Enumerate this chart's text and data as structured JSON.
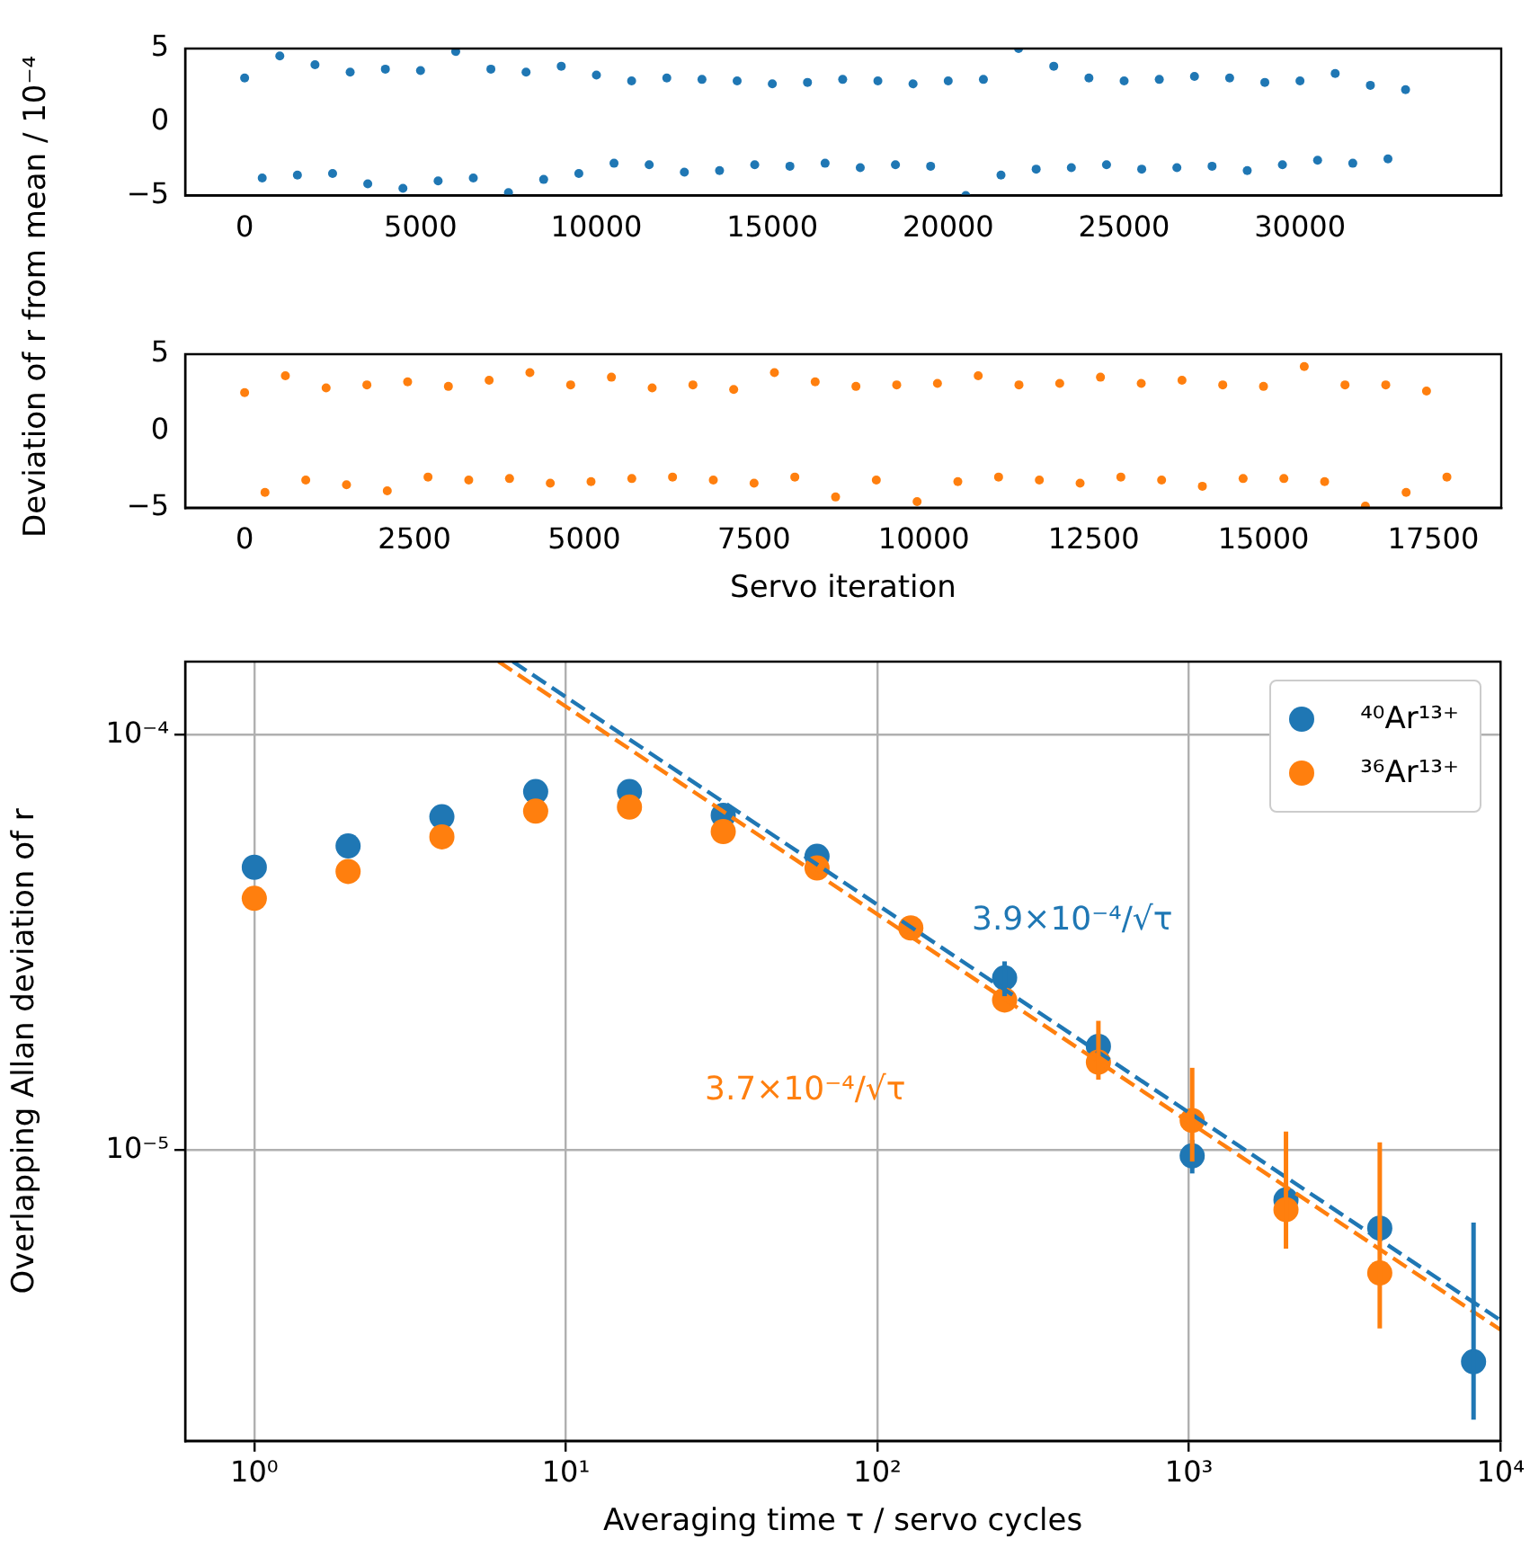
{
  "chart_data": [
    {
      "type": "scatter",
      "ylabel": "Deviation of r from mean / 10⁻⁴",
      "color": "#1f77b4",
      "marker": "circle",
      "grid": false,
      "x": [
        0,
        500,
        1000,
        1500,
        2000,
        2500,
        3000,
        3500,
        4000,
        4500,
        5000,
        5500,
        6000,
        6500,
        7000,
        7500,
        8000,
        8500,
        9000,
        9500,
        10000,
        10500,
        11000,
        11500,
        12000,
        12500,
        13000,
        13500,
        14000,
        14500,
        15000,
        15500,
        16000,
        16500,
        17000,
        17500,
        18000,
        18500,
        19000,
        19500,
        20000,
        20500,
        21000,
        21500,
        22000,
        22500,
        23000,
        23500,
        24000,
        24500,
        25000,
        25500,
        26000,
        26500,
        27000,
        27500,
        28000,
        28500,
        29000,
        29500,
        30000,
        30500,
        31000,
        31500,
        32000,
        32500,
        33000
      ],
      "values": [
        3.0,
        -3.8,
        4.5,
        -3.6,
        3.9,
        -3.5,
        3.4,
        -4.2,
        3.6,
        -4.5,
        3.5,
        -4.0,
        4.8,
        -3.8,
        3.6,
        -4.8,
        3.4,
        -3.9,
        3.8,
        -3.5,
        3.2,
        -2.8,
        2.8,
        -2.9,
        3.0,
        -3.4,
        2.9,
        -3.3,
        2.8,
        -2.9,
        2.6,
        -3.0,
        2.7,
        -2.8,
        2.9,
        -3.1,
        2.8,
        -2.9,
        2.6,
        -3.0,
        2.8,
        -5.0,
        2.9,
        -3.6,
        5.0,
        -3.2,
        3.8,
        -3.1,
        3.0,
        -2.9,
        2.8,
        -3.2,
        2.9,
        -3.1,
        3.1,
        -3.0,
        3.0,
        -3.3,
        2.7,
        -2.9,
        2.8,
        -2.6,
        3.3,
        -2.8,
        2.5,
        -2.5,
        2.2
      ],
      "xlim": [
        -1690,
        35720
      ],
      "xticks": [
        0,
        5000,
        10000,
        15000,
        20000,
        25000,
        30000
      ],
      "ylim": [
        -5,
        5
      ],
      "yticks": [
        {
          "value": -5,
          "label": "−5"
        },
        {
          "value": 0,
          "label": "0"
        },
        {
          "value": 5,
          "label": "5"
        }
      ]
    },
    {
      "type": "scatter",
      "xlabel": "Servo iteration",
      "color": "#ff7f0e",
      "marker": "circle",
      "grid": false,
      "x": [
        0,
        300,
        600,
        900,
        1200,
        1500,
        1800,
        2100,
        2400,
        2700,
        3000,
        3300,
        3600,
        3900,
        4200,
        4500,
        4800,
        5100,
        5400,
        5700,
        6000,
        6300,
        6600,
        6900,
        7200,
        7500,
        7800,
        8100,
        8400,
        8700,
        9000,
        9300,
        9600,
        9900,
        10200,
        10500,
        10800,
        11100,
        11400,
        11700,
        12000,
        12300,
        12600,
        12900,
        13200,
        13500,
        13800,
        14100,
        14400,
        14700,
        15000,
        15300,
        15600,
        15900,
        16200,
        16500,
        16800,
        17100,
        17400,
        17700
      ],
      "values": [
        2.5,
        -4.0,
        3.6,
        -3.2,
        2.8,
        -3.5,
        3.0,
        -3.9,
        3.2,
        -3.0,
        2.9,
        -3.2,
        3.3,
        -3.1,
        3.8,
        -3.4,
        3.0,
        -3.3,
        3.5,
        -3.1,
        2.8,
        -3.0,
        3.0,
        -3.2,
        2.7,
        -3.4,
        3.8,
        -3.0,
        3.2,
        -4.3,
        2.9,
        -3.2,
        3.0,
        -4.6,
        3.1,
        -3.3,
        3.6,
        -3.0,
        3.0,
        -3.2,
        3.1,
        -3.4,
        3.5,
        -3.0,
        3.1,
        -3.2,
        3.3,
        -3.6,
        3.0,
        -3.1,
        2.9,
        -3.1,
        4.2,
        -3.3,
        3.0,
        -4.9,
        3.0,
        -4.0,
        2.6,
        -3.0
      ],
      "xlim": [
        -875,
        18500
      ],
      "xticks": [
        0,
        2500,
        5000,
        7500,
        10000,
        12500,
        15000,
        17500
      ],
      "ylim": [
        -5,
        5
      ],
      "yticks": [
        {
          "value": -5,
          "label": "−5"
        },
        {
          "value": 0,
          "label": "0"
        },
        {
          "value": 5,
          "label": "5"
        }
      ]
    },
    {
      "xlabel": "Averaging time τ / servo cycles",
      "ylabel": "Overlapping Allan deviation of r",
      "log": "xy",
      "grid": true,
      "legend": "top right",
      "xlim": [
        0.6,
        10000
      ],
      "xticks": [
        {
          "value": 1,
          "label": "10⁰"
        },
        {
          "value": 10,
          "label": "10¹"
        },
        {
          "value": 100,
          "label": "10²"
        },
        {
          "value": 1000,
          "label": "10³"
        },
        {
          "value": 10000,
          "label": "10⁴"
        }
      ],
      "ylim": [
        2e-06,
        0.00015
      ],
      "type": "scatter",
      "yticks": [
        {
          "value": 1e-05,
          "label": "10⁻⁵"
        },
        {
          "value": 0.0001,
          "label": "10⁻⁴"
        }
      ],
      "x": [
        1,
        2,
        4,
        8,
        16,
        32,
        64,
        128,
        256,
        512,
        1024,
        2048,
        4096,
        8192
      ],
      "series": [
        {
          "type": "scatter",
          "marker": "circle",
          "name": "⁴⁰Ar¹³⁺",
          "color": "#1f77b4",
          "values": [
            4.8e-05,
            5.4e-05,
            6.35e-05,
            7.3e-05,
            7.3e-05,
            6.4e-05,
            5.1e-05,
            null,
            2.6e-05,
            1.78e-05,
            9.7e-06,
            7.6e-06,
            6.5e-06,
            3.1e-06
          ],
          "errors": [
            null,
            null,
            null,
            null,
            null,
            null,
            null,
            null,
            2.5e-06,
            null,
            9e-07,
            null,
            null,
            [
              2.25e-06,
              6.7e-06
            ]
          ]
        },
        {
          "type": "scatter",
          "marker": "circle",
          "name": "³⁶Ar¹³⁺",
          "color": "#ff7f0e",
          "x": [
            1,
            2,
            4,
            8,
            16,
            32,
            64,
            128,
            256,
            512,
            1024,
            2048,
            4096
          ],
          "values": [
            4.04e-05,
            4.69e-05,
            5.68e-05,
            6.55e-05,
            6.7e-05,
            5.85e-05,
            4.78e-05,
            3.43e-05,
            2.3e-05,
            1.63e-05,
            1.18e-05,
            7.2e-06,
            5.07e-06
          ],
          "errors": [
            null,
            null,
            null,
            null,
            null,
            null,
            null,
            null,
            null,
            [
              1.48e-05,
              2.05e-05
            ],
            [
              9.4e-06,
              1.58e-05
            ],
            [
              5.8e-06,
              1.11e-05
            ],
            [
              3.73e-06,
              1.045e-05
            ]
          ]
        },
        {
          "type": "line",
          "marker": "none",
          "color": "#1f77b4",
          "line_style": "dashed",
          "x": [
            6.76,
            10000
          ],
          "values": [
            0.00015,
            3.9e-06
          ]
        },
        {
          "type": "line",
          "marker": "none",
          "color": "#ff7f0e",
          "line_style": "dashed",
          "x": [
            6.08,
            10000
          ],
          "values": [
            0.00015,
            3.7e-06
          ]
        }
      ],
      "annotations": [
        "3.9×10⁻⁴/√τ",
        "3.7×10⁻⁴/√τ"
      ]
    }
  ]
}
